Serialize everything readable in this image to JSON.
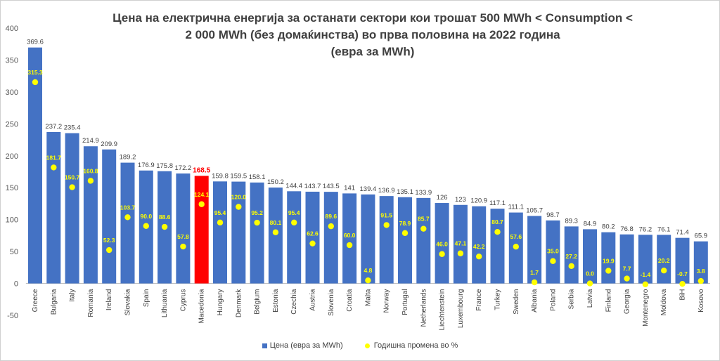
{
  "chart_data": {
    "type": "bar",
    "title_lines": [
      "Цена на електрична енергија за останати сектори кои трошат 500 MWh < Consumption <",
      "2 000 MWh (без домаќинства) во прва половина на 2022 година",
      "(евра за MWh)"
    ],
    "categories": [
      "Greece",
      "Bulgaria",
      "Italy",
      "Romania",
      "Ireland",
      "Slovakia",
      "Spain",
      "Lithuania",
      "Cyprus",
      "Macedonia",
      "Hungary",
      "Denmark",
      "Belgium",
      "Estonia",
      "Czechia",
      "Austria",
      "Slovenia",
      "Croatia",
      "Malta",
      "Norway",
      "Portugal",
      "Netherlands",
      "Liechtenstein",
      "Luxembourg",
      "France",
      "Turkey",
      "Sweden",
      "Albania",
      "Poland",
      "Serbia",
      "Latvia",
      "Finland",
      "Georgia",
      "Montenegro",
      "Moldova",
      "BiH",
      "Kosovo"
    ],
    "series": [
      {
        "name": "Цена (евра за MWh)",
        "type": "bar",
        "color": "#4472c4",
        "values": [
          369.6,
          237.2,
          235.4,
          214.9,
          209.9,
          189.2,
          176.9,
          175.8,
          172.2,
          168.5,
          159.8,
          159.5,
          158.1,
          150.2,
          144.4,
          143.7,
          143.5,
          141,
          139.4,
          136.9,
          135.1,
          133.9,
          126,
          123,
          120.9,
          117.1,
          111.1,
          105.7,
          98.7,
          89.3,
          84.9,
          80.2,
          76.8,
          76.2,
          76.1,
          71.4,
          65.9
        ],
        "labels": [
          "369.6",
          "237.2",
          "235.4",
          "214.9",
          "209.9",
          "189.2",
          "176.9",
          "175.8",
          "172.2",
          "168.5",
          "159.8",
          "159.5",
          "158.1",
          "150.2",
          "144.4",
          "143.7",
          "143.5",
          "141",
          "139.4",
          "136.9",
          "135.1",
          "133.9",
          "126",
          "123",
          "120.9",
          "117.1",
          "111.1",
          "105.7",
          "98.7",
          "89.3",
          "84.9",
          "80.2",
          "76.8",
          "76.2",
          "76.1",
          "71.4",
          "65.9"
        ]
      },
      {
        "name": "Годишна промена во %",
        "type": "scatter",
        "color": "#ffff00",
        "values": [
          315.3,
          181.7,
          150.7,
          160.8,
          52.3,
          103.7,
          90.0,
          88.6,
          57.8,
          124.1,
          95.4,
          120.0,
          95.2,
          80.1,
          95.4,
          62.6,
          89.6,
          60.0,
          4.8,
          91.5,
          78.9,
          85.7,
          46.0,
          47.1,
          42.2,
          80.7,
          57.6,
          1.7,
          35.0,
          27.2,
          0.0,
          19.9,
          7.7,
          -1.4,
          20.2,
          -0.7,
          3.8
        ],
        "labels": [
          "315.3",
          "181.7",
          "150.7",
          "160.8",
          "52.3",
          "103.7",
          "90.0",
          "88.6",
          "57.8",
          "124.1",
          "95.4",
          "120.0",
          "95.2",
          "80.1",
          "95.4",
          "62.6",
          "89.6",
          "60.0",
          "4.8",
          "91.5",
          "78.9",
          "85.7",
          "46.0",
          "47.1",
          "42.2",
          "80.7",
          "57.6",
          "1.7",
          "35.0",
          "27.2",
          "0.0",
          "19.9",
          "7.7",
          "-1.4",
          "20.2",
          "-0.7",
          "3.8"
        ]
      }
    ],
    "highlight": {
      "category": "Macedonia",
      "color": "#ff0000",
      "label_color": "#ff0000"
    },
    "ylim": [
      -50,
      400
    ],
    "yticks": [
      "-50",
      "0",
      "50",
      "100",
      "150",
      "200",
      "250",
      "300",
      "350",
      "400"
    ],
    "grid": false,
    "legend_position": "bottom"
  }
}
